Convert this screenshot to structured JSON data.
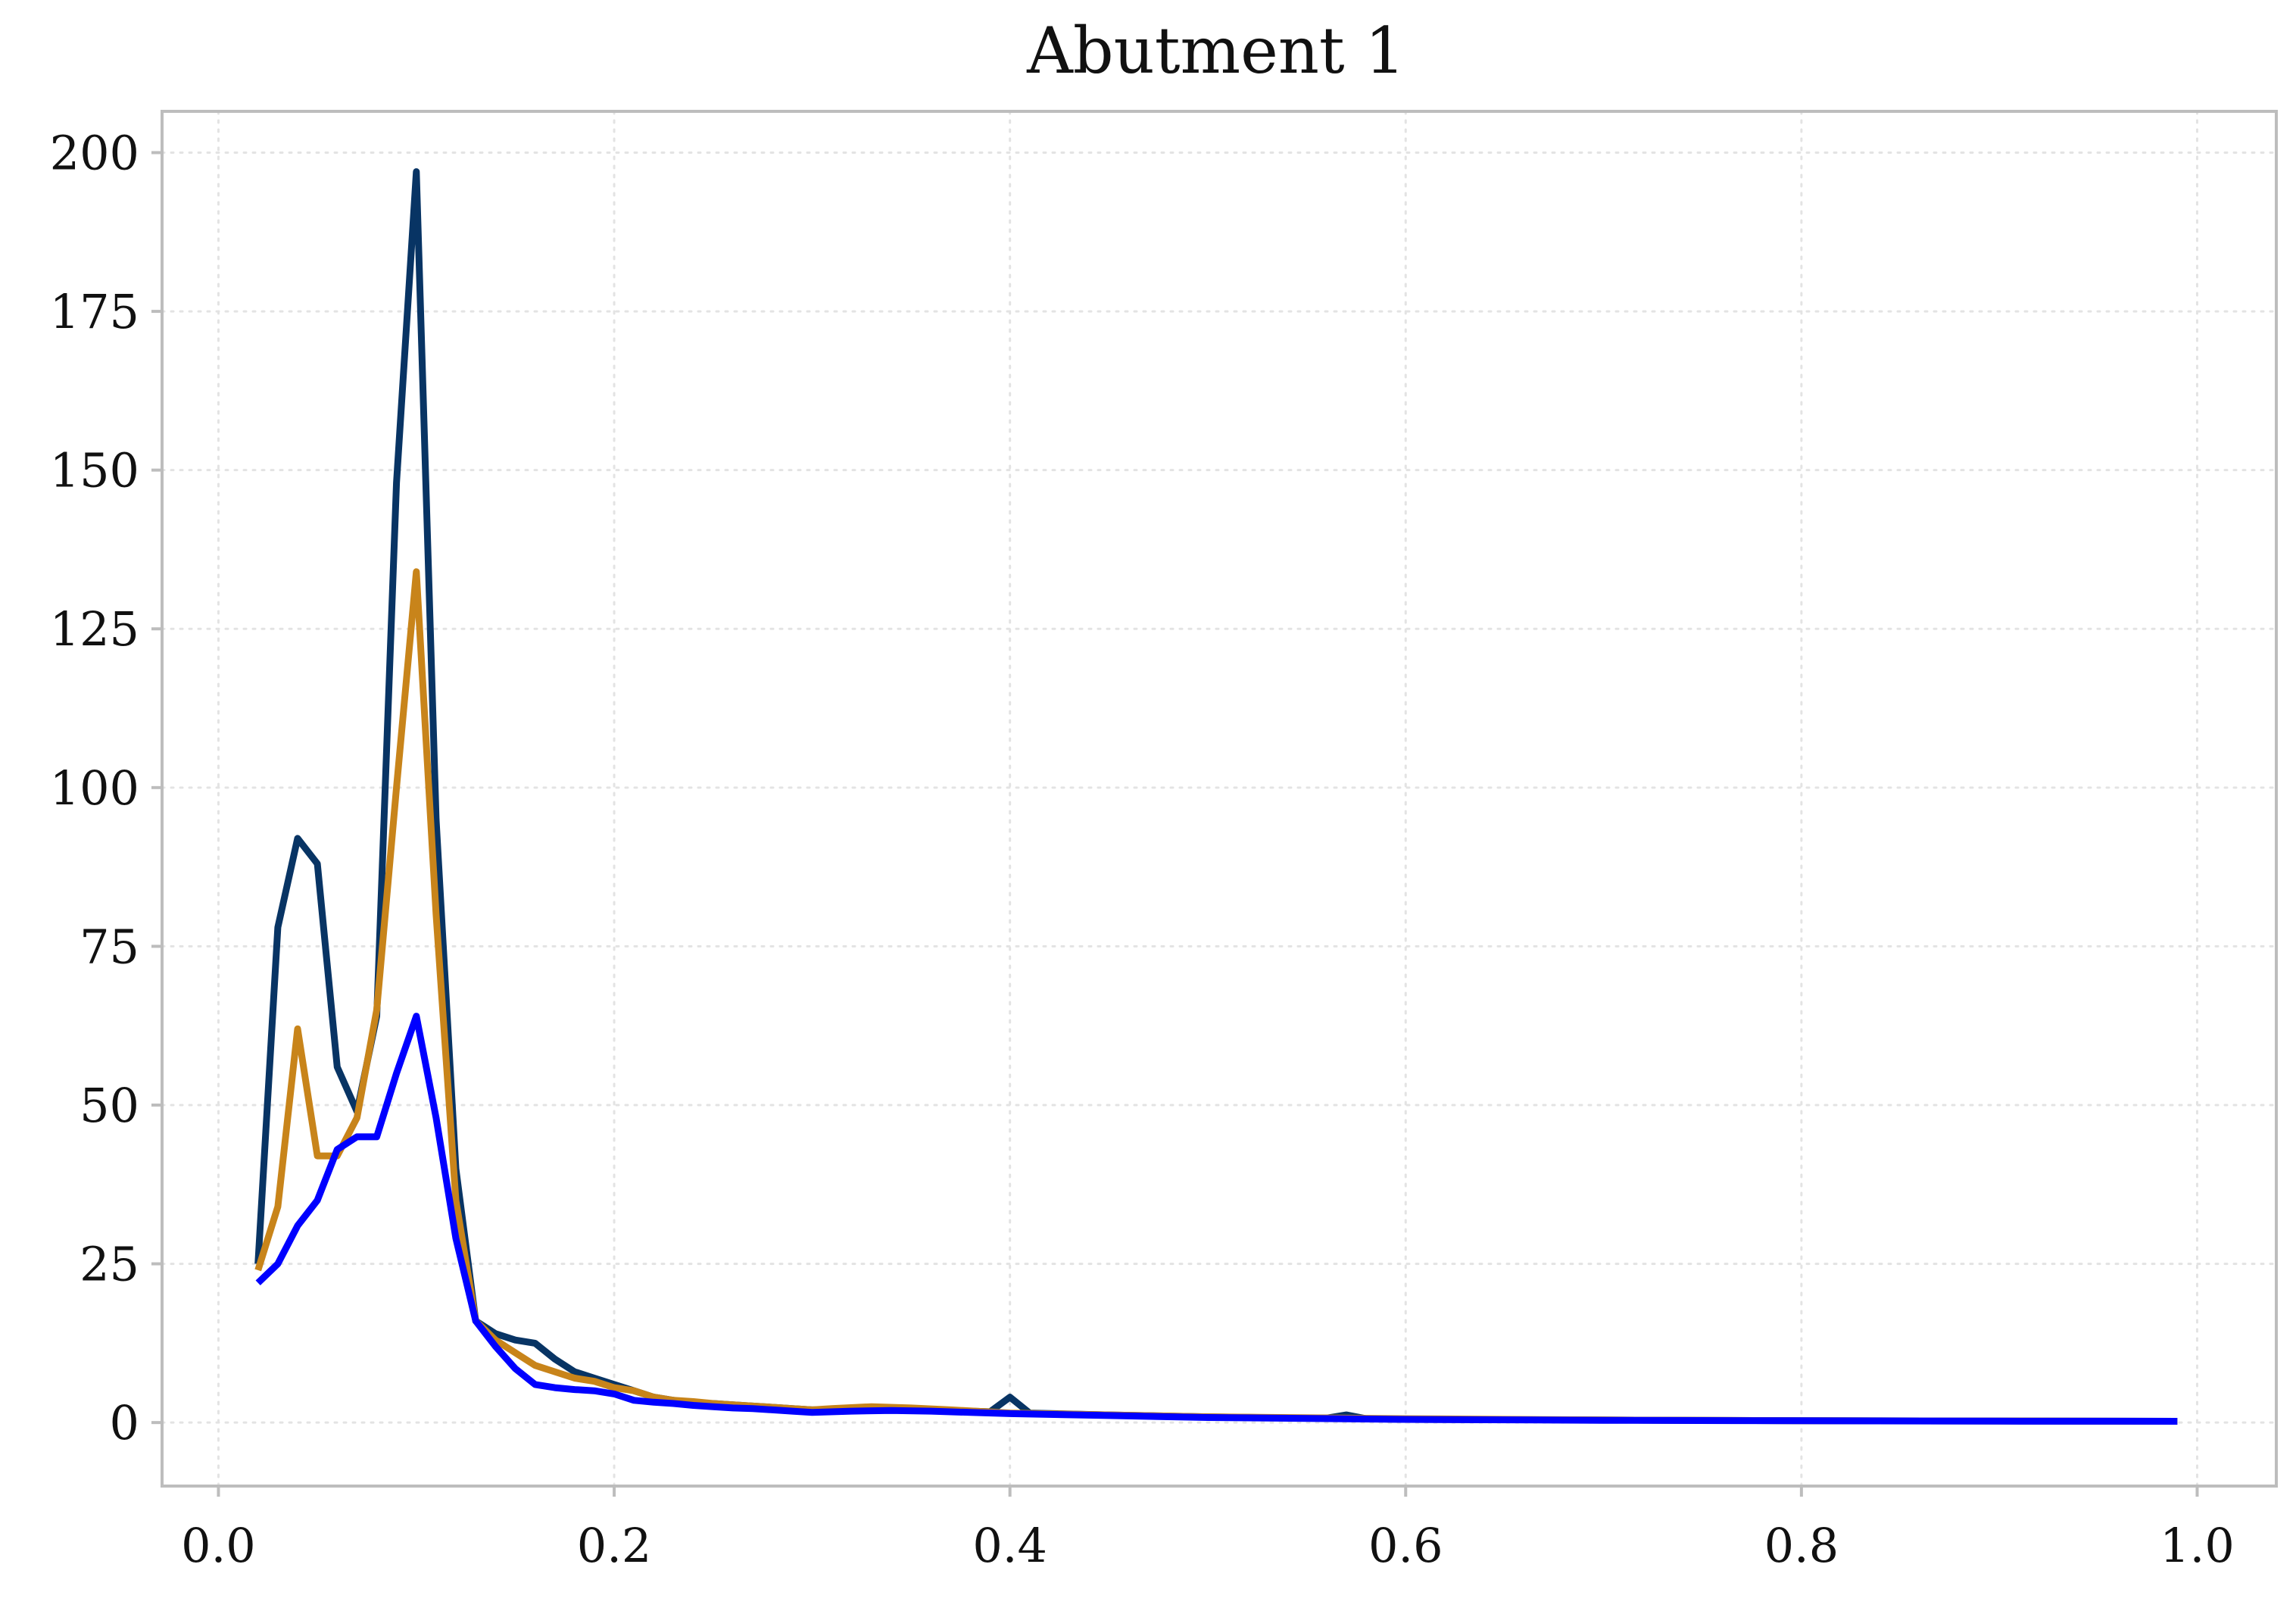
{
  "chart_data": {
    "type": "line",
    "title": "Abutment 1",
    "xlabel": "",
    "ylabel": "",
    "xlim": [
      -0.0285,
      1.04
    ],
    "ylim": [
      -10,
      206.5
    ],
    "grid": true,
    "x_ticks": [
      0.0,
      0.2,
      0.4,
      0.6,
      0.8,
      1.0
    ],
    "x_tick_labels": [
      "0.0",
      "0.2",
      "0.4",
      "0.6",
      "0.8",
      "1.0"
    ],
    "y_ticks": [
      0,
      25,
      50,
      75,
      100,
      125,
      150,
      175,
      200
    ],
    "y_tick_labels": [
      "0",
      "25",
      "50",
      "75",
      "100",
      "125",
      "150",
      "175",
      "200"
    ],
    "series": [
      {
        "color": "#083464",
        "points": [
          [
            0.02,
            25
          ],
          [
            0.03,
            78
          ],
          [
            0.04,
            92
          ],
          [
            0.05,
            88
          ],
          [
            0.06,
            56
          ],
          [
            0.07,
            49
          ],
          [
            0.08,
            64
          ],
          [
            0.09,
            148
          ],
          [
            0.1,
            197
          ],
          [
            0.11,
            95
          ],
          [
            0.12,
            40
          ],
          [
            0.13,
            16
          ],
          [
            0.14,
            14
          ],
          [
            0.15,
            13
          ],
          [
            0.16,
            12.5
          ],
          [
            0.17,
            10
          ],
          [
            0.18,
            8
          ],
          [
            0.19,
            7
          ],
          [
            0.2,
            6
          ],
          [
            0.21,
            5
          ],
          [
            0.22,
            4
          ],
          [
            0.23,
            3.5
          ],
          [
            0.24,
            3
          ],
          [
            0.25,
            3
          ],
          [
            0.26,
            2.8
          ],
          [
            0.27,
            2.6
          ],
          [
            0.28,
            2.4
          ],
          [
            0.29,
            2.2
          ],
          [
            0.3,
            2
          ],
          [
            0.32,
            2
          ],
          [
            0.34,
            2
          ],
          [
            0.36,
            1.9
          ],
          [
            0.38,
            1.8
          ],
          [
            0.39,
            1.7
          ],
          [
            0.4,
            4
          ],
          [
            0.41,
            1.5
          ],
          [
            0.45,
            1.2
          ],
          [
            0.5,
            0.9
          ],
          [
            0.55,
            0.7
          ],
          [
            0.56,
            0.7
          ],
          [
            0.57,
            1.2
          ],
          [
            0.58,
            0.6
          ],
          [
            0.6,
            0.5
          ],
          [
            0.7,
            0.4
          ],
          [
            0.8,
            0.3
          ],
          [
            0.9,
            0.25
          ],
          [
            0.99,
            0.2
          ]
        ]
      },
      {
        "color": "#c8841a",
        "points": [
          [
            0.02,
            24
          ],
          [
            0.03,
            34
          ],
          [
            0.04,
            62
          ],
          [
            0.05,
            42
          ],
          [
            0.06,
            42
          ],
          [
            0.07,
            48
          ],
          [
            0.08,
            65
          ],
          [
            0.09,
            100
          ],
          [
            0.1,
            134
          ],
          [
            0.11,
            80
          ],
          [
            0.12,
            35
          ],
          [
            0.13,
            16
          ],
          [
            0.14,
            13
          ],
          [
            0.15,
            11
          ],
          [
            0.16,
            9
          ],
          [
            0.17,
            8
          ],
          [
            0.18,
            7
          ],
          [
            0.19,
            6.5
          ],
          [
            0.2,
            5.5
          ],
          [
            0.21,
            5
          ],
          [
            0.22,
            4
          ],
          [
            0.23,
            3.5
          ],
          [
            0.24,
            3.3
          ],
          [
            0.25,
            3
          ],
          [
            0.26,
            2.8
          ],
          [
            0.27,
            2.6
          ],
          [
            0.28,
            2.4
          ],
          [
            0.29,
            2.2
          ],
          [
            0.3,
            2
          ],
          [
            0.31,
            2.2
          ],
          [
            0.33,
            2.5
          ],
          [
            0.35,
            2.3
          ],
          [
            0.37,
            2
          ],
          [
            0.4,
            1.5
          ],
          [
            0.45,
            1.2
          ],
          [
            0.5,
            0.9
          ],
          [
            0.6,
            0.6
          ],
          [
            0.7,
            0.4
          ],
          [
            0.8,
            0.3
          ],
          [
            0.9,
            0.25
          ],
          [
            0.99,
            0.2
          ]
        ]
      },
      {
        "color": "#0000ff",
        "points": [
          [
            0.02,
            22
          ],
          [
            0.03,
            25
          ],
          [
            0.04,
            31
          ],
          [
            0.05,
            35
          ],
          [
            0.06,
            43
          ],
          [
            0.07,
            45
          ],
          [
            0.08,
            45
          ],
          [
            0.09,
            55
          ],
          [
            0.1,
            64
          ],
          [
            0.11,
            48
          ],
          [
            0.12,
            29
          ],
          [
            0.13,
            16
          ],
          [
            0.14,
            12
          ],
          [
            0.15,
            8.5
          ],
          [
            0.16,
            6
          ],
          [
            0.17,
            5.5
          ],
          [
            0.18,
            5.2
          ],
          [
            0.19,
            5
          ],
          [
            0.2,
            4.5
          ],
          [
            0.21,
            3.5
          ],
          [
            0.22,
            3.2
          ],
          [
            0.23,
            3
          ],
          [
            0.24,
            2.7
          ],
          [
            0.25,
            2.5
          ],
          [
            0.26,
            2.3
          ],
          [
            0.27,
            2.2
          ],
          [
            0.28,
            2
          ],
          [
            0.29,
            1.8
          ],
          [
            0.3,
            1.6
          ],
          [
            0.32,
            1.8
          ],
          [
            0.34,
            1.9
          ],
          [
            0.36,
            1.8
          ],
          [
            0.38,
            1.6
          ],
          [
            0.4,
            1.4
          ],
          [
            0.45,
            1.1
          ],
          [
            0.5,
            0.8
          ],
          [
            0.6,
            0.5
          ],
          [
            0.7,
            0.35
          ],
          [
            0.8,
            0.28
          ],
          [
            0.9,
            0.22
          ],
          [
            0.99,
            0.2
          ]
        ]
      }
    ]
  }
}
